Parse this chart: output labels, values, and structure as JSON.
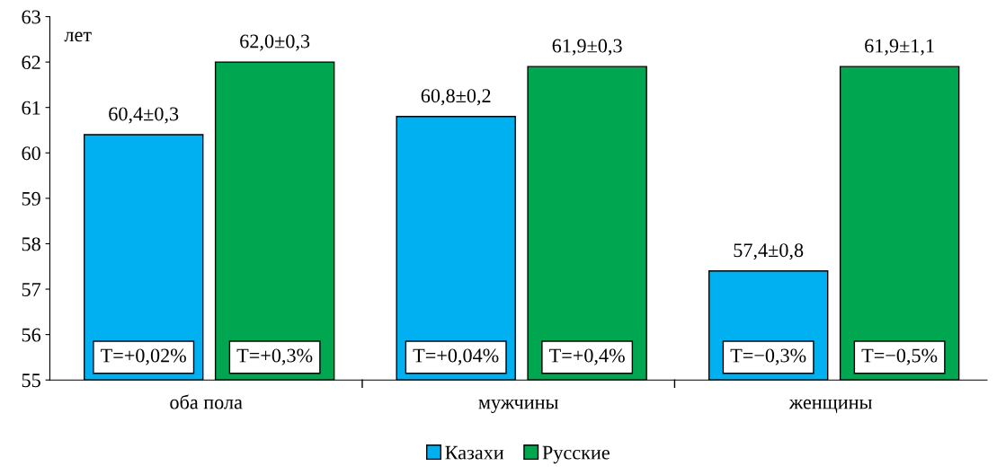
{
  "chart_data": {
    "type": "bar",
    "ylabel": "лет",
    "categories": [
      "оба пола",
      "мужчины",
      "женщины"
    ],
    "series": [
      {
        "name": "Казахи",
        "color": "#00b0f0",
        "values": [
          60.4,
          60.8,
          57.4
        ],
        "value_labels": [
          "60,4±0,3",
          "60,8±0,2",
          "57,4±0,8"
        ]
      },
      {
        "name": "Русские",
        "color": "#00a650",
        "values": [
          62.0,
          61.9,
          61.9
        ],
        "value_labels": [
          "62,0±0,3",
          "61,9±0,3",
          "61,9±1,1"
        ]
      }
    ],
    "annotations": [
      "T=+0,02%",
      "T=+0,3%",
      "T=+0,04%",
      "T=+0,4%",
      "T=−0,3%",
      "T=−0,5%"
    ],
    "ylim": [
      55,
      63
    ],
    "yticks": [
      55,
      56,
      57,
      58,
      59,
      60,
      61,
      62,
      63
    ],
    "grid": false,
    "legend": "bottom"
  }
}
